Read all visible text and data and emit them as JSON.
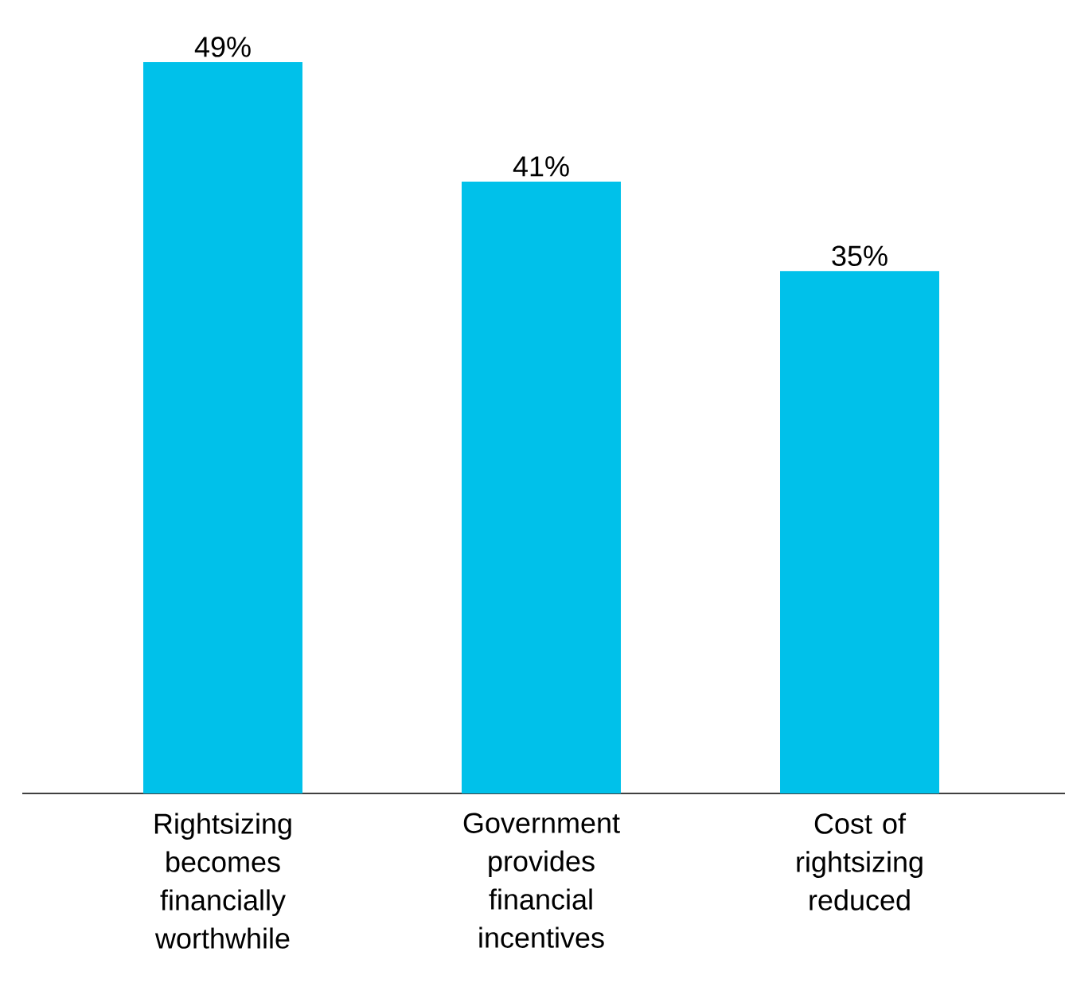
{
  "chart_data": {
    "type": "bar",
    "categories": [
      "Rightsizing becomes financially worthwhile",
      "Government provides financial incentives",
      "Cost of rightsizing reduced"
    ],
    "values": [
      49,
      41,
      35
    ],
    "value_labels": [
      "49%",
      "41%",
      "35%"
    ],
    "color": "#00c1ea"
  }
}
